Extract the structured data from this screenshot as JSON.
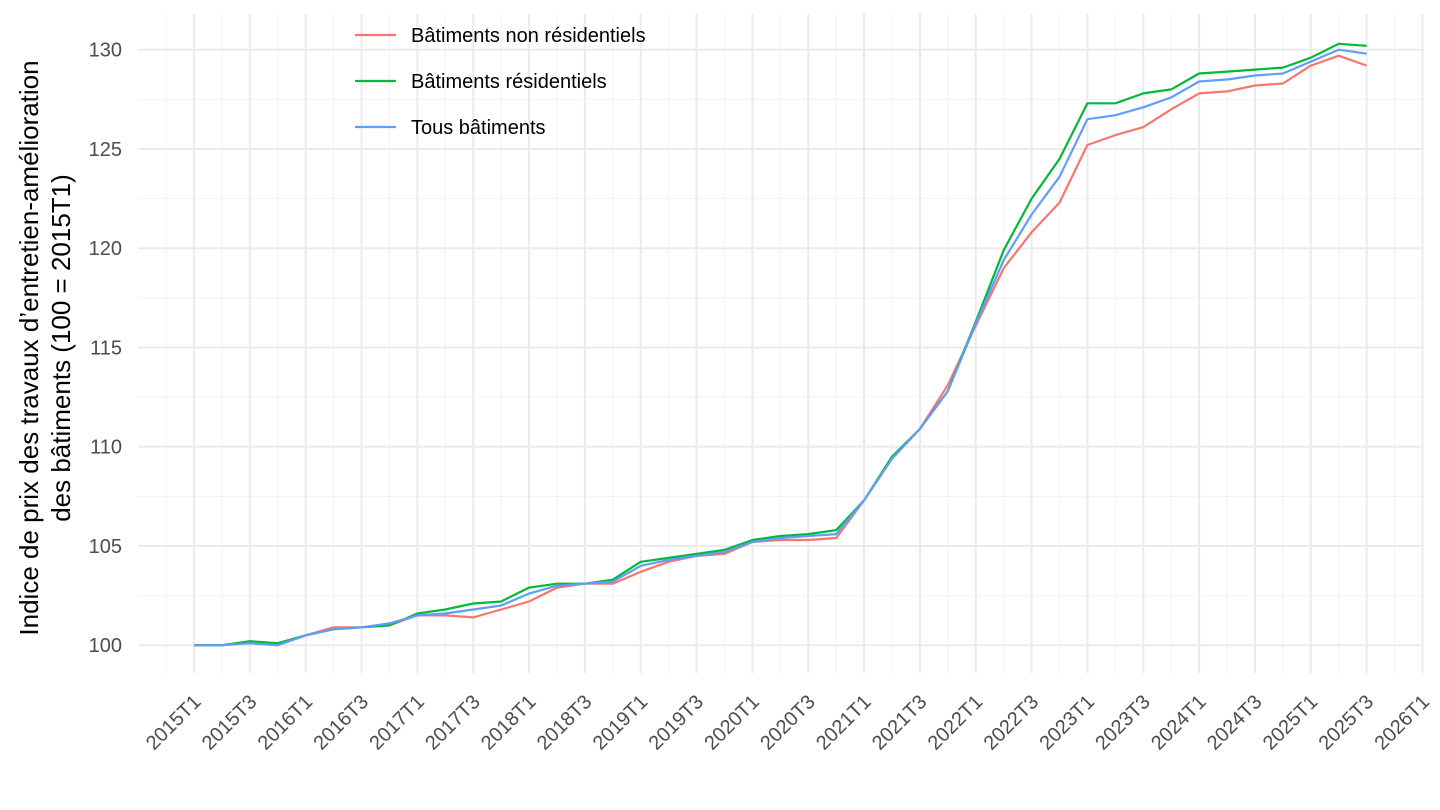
{
  "chart_data": {
    "type": "line",
    "ylabel": [
      "Indice de prix des travaux d’entretien-amélioration",
      "des bâtiments (100 = 2015T1)"
    ],
    "xlabel": "",
    "x_ticks": [
      "2015T1",
      "2015T3",
      "2016T1",
      "2016T3",
      "2017T1",
      "2017T3",
      "2018T1",
      "2018T3",
      "2019T1",
      "2019T3",
      "2020T1",
      "2020T3",
      "2021T1",
      "2021T3",
      "2022T1",
      "2022T3",
      "2023T1",
      "2023T3",
      "2024T1",
      "2024T3",
      "2025T1",
      "2025T3",
      "2026T1"
    ],
    "y_ticks": [
      100,
      105,
      110,
      115,
      120,
      125,
      130
    ],
    "ylim": [
      98.6,
      131.8
    ],
    "grid": true,
    "legend_position": "top-left inside",
    "categories": [
      "2015T1",
      "2015T2",
      "2015T3",
      "2015T4",
      "2016T1",
      "2016T2",
      "2016T3",
      "2016T4",
      "2017T1",
      "2017T2",
      "2017T3",
      "2017T4",
      "2018T1",
      "2018T2",
      "2018T3",
      "2018T4",
      "2019T1",
      "2019T2",
      "2019T3",
      "2019T4",
      "2020T1",
      "2020T2",
      "2020T3",
      "2020T4",
      "2021T1",
      "2021T2",
      "2021T3",
      "2021T4",
      "2022T1",
      "2022T2",
      "2022T3",
      "2022T4",
      "2023T1",
      "2023T2",
      "2023T3",
      "2023T4",
      "2024T1",
      "2024T2",
      "2024T3",
      "2024T4",
      "2025T1",
      "2025T2",
      "2025T3"
    ],
    "series": [
      {
        "name": "Bâtiments non résidentiels",
        "color": "#F8766D",
        "values": [
          100.0,
          100.0,
          100.1,
          100.0,
          100.5,
          100.9,
          100.9,
          101.0,
          101.5,
          101.5,
          101.4,
          101.8,
          102.2,
          102.9,
          103.1,
          103.1,
          103.7,
          104.2,
          104.5,
          104.6,
          105.2,
          105.3,
          105.3,
          105.4,
          107.3,
          109.4,
          110.9,
          113.1,
          116.1,
          119.0,
          120.8,
          122.3,
          125.2,
          125.7,
          126.1,
          127.0,
          127.8,
          127.9,
          128.2,
          128.3,
          129.2,
          129.7,
          129.2
        ]
      },
      {
        "name": "Bâtiments résidentiels",
        "color": "#00BA38",
        "values": [
          100.0,
          100.0,
          100.2,
          100.1,
          100.5,
          100.8,
          100.9,
          101.0,
          101.6,
          101.8,
          102.1,
          102.2,
          102.9,
          103.1,
          103.1,
          103.3,
          104.2,
          104.4,
          104.6,
          104.8,
          105.3,
          105.5,
          105.6,
          105.8,
          107.3,
          109.5,
          110.9,
          112.8,
          116.3,
          119.9,
          122.5,
          124.5,
          127.3,
          127.3,
          127.8,
          128.0,
          128.8,
          128.9,
          129.0,
          129.1,
          129.6,
          130.3,
          130.2
        ]
      },
      {
        "name": "Tous bâtiments",
        "color": "#619CFF",
        "values": [
          100.0,
          100.0,
          100.1,
          100.0,
          100.5,
          100.8,
          100.9,
          101.1,
          101.5,
          101.6,
          101.8,
          102.0,
          102.6,
          103.0,
          103.1,
          103.2,
          104.0,
          104.3,
          104.5,
          104.7,
          105.2,
          105.4,
          105.5,
          105.6,
          107.3,
          109.4,
          110.9,
          112.8,
          116.2,
          119.4,
          121.7,
          123.6,
          126.5,
          126.7,
          127.1,
          127.6,
          128.4,
          128.5,
          128.7,
          128.8,
          129.4,
          130.0,
          129.8
        ]
      }
    ]
  }
}
